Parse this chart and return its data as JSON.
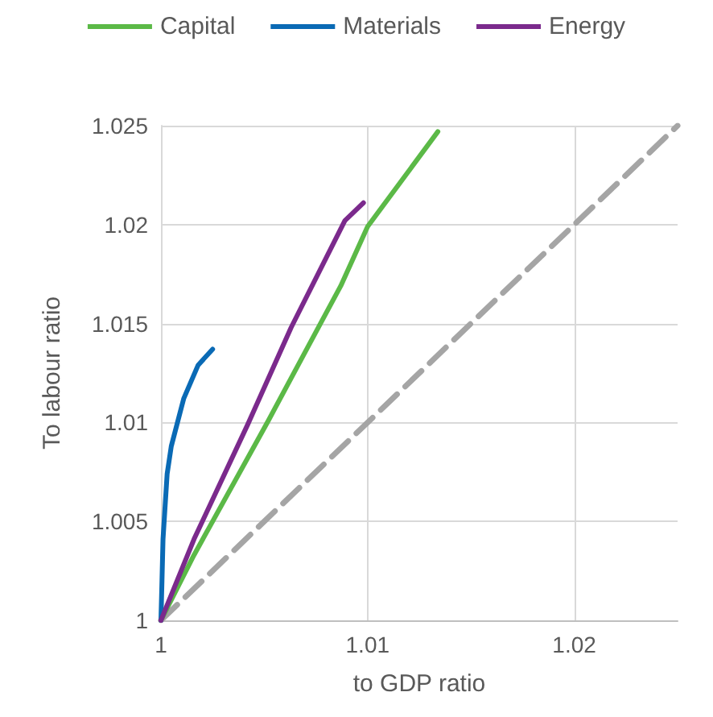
{
  "chart_data": {
    "type": "line",
    "xlabel": "to GDP ratio",
    "ylabel": "To labour ratio",
    "xlim": [
      1,
      1.025
    ],
    "xticks": [
      1,
      1.01,
      1.02
    ],
    "ylim": [
      1,
      1.025
    ],
    "yticks": [
      1,
      1.005,
      1.01,
      1.015,
      1.02,
      1.025
    ],
    "grid": true,
    "legend": "top",
    "marker": "none",
    "series": [
      {
        "name": "Capital",
        "color": "#5bb947",
        "x": [
          1,
          1.0016,
          1.0052,
          1.0071,
          1.0087,
          1.01,
          1.0134
        ],
        "values": [
          1,
          1.0033,
          1.0101,
          1.0138,
          1.0169,
          1.0199,
          1.0247
        ]
      },
      {
        "name": "Materials",
        "color": "#0a6ab5",
        "x": [
          1,
          1.00005,
          1.0001,
          1.0003,
          1.0005,
          1.0011,
          1.0018,
          1.0025
        ],
        "values": [
          1,
          1.002,
          1.0041,
          1.0074,
          1.0088,
          1.0112,
          1.0129,
          1.0137
        ]
      },
      {
        "name": "Energy",
        "color": "#7b2a8c",
        "x": [
          1,
          1.0016,
          1.0042,
          1.0063,
          1.0089,
          1.0098
        ],
        "values": [
          1,
          1.0041,
          1.0099,
          1.0148,
          1.0202,
          1.0211
        ]
      },
      {
        "color": "#a5a5a5",
        "line_style": "dashed",
        "x": [
          1,
          1.025
        ],
        "values": [
          1,
          1.025
        ]
      }
    ]
  }
}
